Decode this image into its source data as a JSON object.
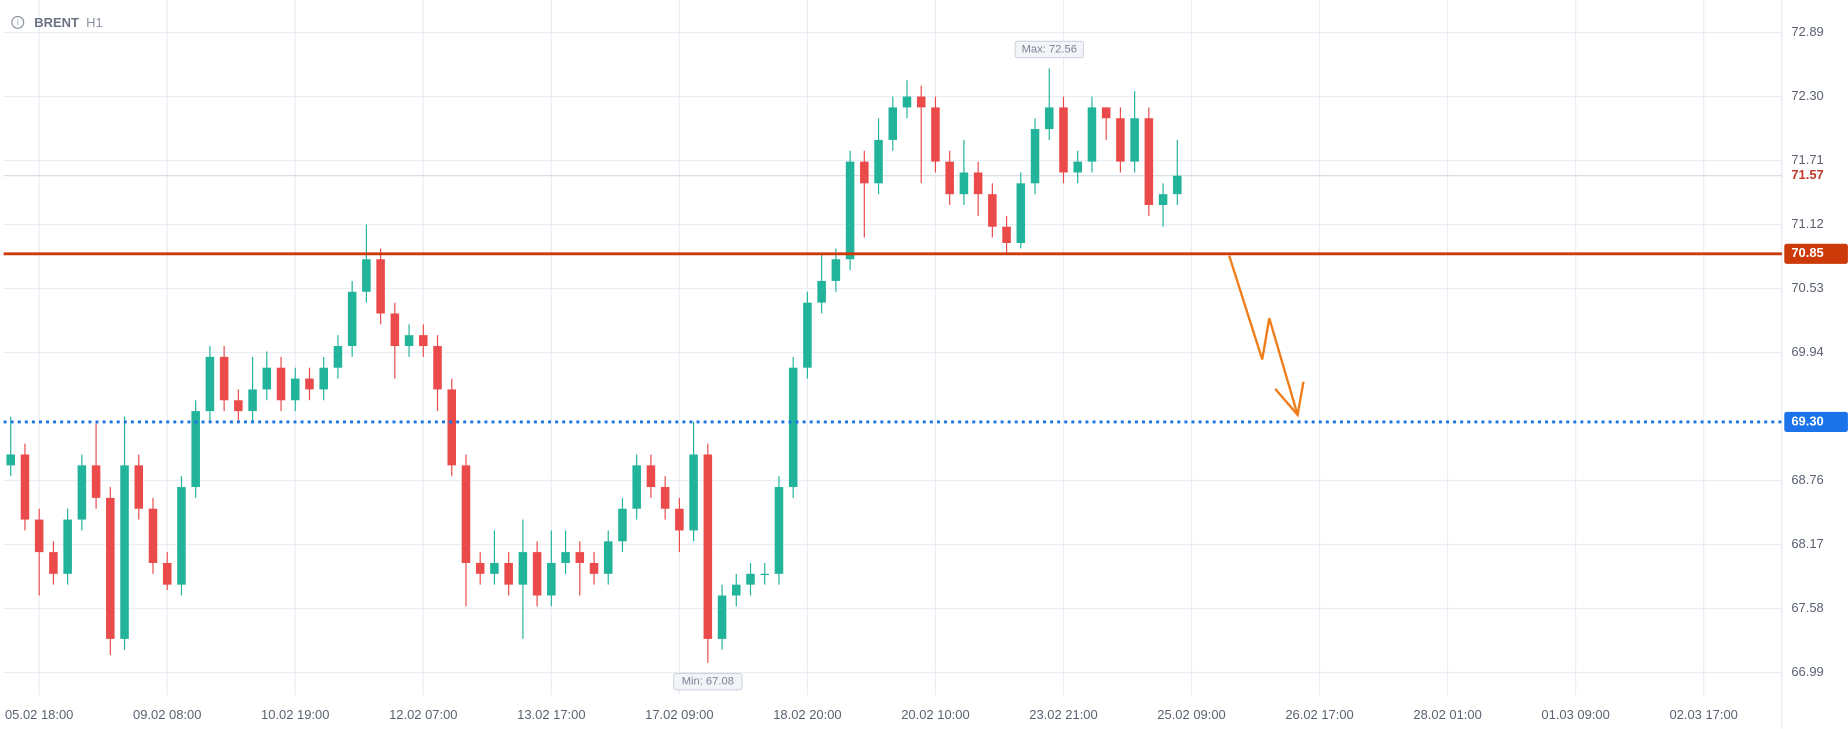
{
  "chart_data": {
    "type": "candlestick",
    "title": "BRENT",
    "timeframe": "H1",
    "x": [
      -8,
      -4,
      0,
      4,
      8,
      12,
      16,
      20,
      24,
      28,
      32,
      36,
      40,
      44,
      48,
      52,
      56,
      60,
      64,
      68,
      72,
      76,
      80,
      84,
      88,
      92,
      96,
      100,
      104,
      108,
      112,
      116,
      120,
      124,
      128,
      132,
      136,
      140,
      144,
      148,
      152,
      156,
      160,
      164,
      168,
      172,
      176,
      180,
      184,
      188,
      192,
      196,
      200,
      204,
      208,
      212,
      216,
      220,
      224,
      228,
      232,
      236,
      240,
      244,
      248,
      252,
      256,
      260,
      264,
      268,
      272,
      276,
      280,
      284,
      288,
      292,
      296,
      300,
      304,
      308,
      312,
      316,
      320
    ],
    "open": [
      68.9,
      69.0,
      68.4,
      68.1,
      67.9,
      68.4,
      68.9,
      68.6,
      67.3,
      68.9,
      68.5,
      68.0,
      67.8,
      68.7,
      69.4,
      69.9,
      69.5,
      69.4,
      69.6,
      69.8,
      69.5,
      69.7,
      69.6,
      69.8,
      70.0,
      70.5,
      70.8,
      70.3,
      70.0,
      70.1,
      70.0,
      69.6,
      68.9,
      68.0,
      67.9,
      68.0,
      67.8,
      68.1,
      67.7,
      68.0,
      68.1,
      68.0,
      67.9,
      68.2,
      68.5,
      68.9,
      68.7,
      68.5,
      68.3,
      69.0,
      67.3,
      67.7,
      67.8,
      67.9,
      67.9,
      68.7,
      69.8,
      70.4,
      70.6,
      70.8,
      71.7,
      71.5,
      71.9,
      72.2,
      72.3,
      72.2,
      71.7,
      71.4,
      71.6,
      71.4,
      71.1,
      70.95,
      71.5,
      72.0,
      72.2,
      71.6,
      71.7,
      72.2,
      72.1,
      71.7,
      72.1,
      71.3,
      71.4
    ],
    "high": [
      69.35,
      69.1,
      68.5,
      68.2,
      68.5,
      69.0,
      69.3,
      68.7,
      69.35,
      69.0,
      68.6,
      68.1,
      68.8,
      69.5,
      70.0,
      70.0,
      69.6,
      69.9,
      69.95,
      69.9,
      69.8,
      69.8,
      69.9,
      70.1,
      70.6,
      71.12,
      70.9,
      70.4,
      70.2,
      70.2,
      70.1,
      69.7,
      69.0,
      68.1,
      68.3,
      68.1,
      68.4,
      68.2,
      68.3,
      68.3,
      68.2,
      68.1,
      68.3,
      68.6,
      69.0,
      69.0,
      68.8,
      68.6,
      69.3,
      69.1,
      67.8,
      67.9,
      68.0,
      68.0,
      68.8,
      69.9,
      70.5,
      70.85,
      70.9,
      71.8,
      71.8,
      72.1,
      72.3,
      72.45,
      72.4,
      72.3,
      71.8,
      71.9,
      71.7,
      71.5,
      71.2,
      71.6,
      72.1,
      72.56,
      72.3,
      71.8,
      72.3,
      72.2,
      72.2,
      72.35,
      72.2,
      71.5,
      71.9
    ],
    "low": [
      68.8,
      68.3,
      67.7,
      67.8,
      67.8,
      68.3,
      68.5,
      67.15,
      67.2,
      68.4,
      67.9,
      67.75,
      67.7,
      68.6,
      69.3,
      69.4,
      69.3,
      69.3,
      69.5,
      69.4,
      69.4,
      69.5,
      69.5,
      69.7,
      69.9,
      70.4,
      70.2,
      69.7,
      69.9,
      69.9,
      69.4,
      68.8,
      67.6,
      67.8,
      67.8,
      67.7,
      67.3,
      67.6,
      67.6,
      67.9,
      67.7,
      67.8,
      67.8,
      68.1,
      68.4,
      68.6,
      68.4,
      68.1,
      68.2,
      67.08,
      67.2,
      67.6,
      67.7,
      67.8,
      67.8,
      68.6,
      69.7,
      70.3,
      70.5,
      70.7,
      71.0,
      71.4,
      71.8,
      72.1,
      71.5,
      71.6,
      71.3,
      71.3,
      71.2,
      71.0,
      70.85,
      70.9,
      71.4,
      71.9,
      71.5,
      71.5,
      71.6,
      71.9,
      71.6,
      71.6,
      71.2,
      71.1,
      71.3
    ],
    "close": [
      69.0,
      68.4,
      68.1,
      67.9,
      68.4,
      68.9,
      68.6,
      67.3,
      68.9,
      68.5,
      68.0,
      67.8,
      68.7,
      69.4,
      69.9,
      69.5,
      69.4,
      69.6,
      69.8,
      69.5,
      69.7,
      69.6,
      69.8,
      70.0,
      70.5,
      70.8,
      70.3,
      70.0,
      70.1,
      70.0,
      69.6,
      68.9,
      68.0,
      67.9,
      68.0,
      67.8,
      68.1,
      67.7,
      68.0,
      68.1,
      68.0,
      67.9,
      68.2,
      68.5,
      68.9,
      68.7,
      68.5,
      68.3,
      69.0,
      67.3,
      67.7,
      67.8,
      67.9,
      67.9,
      68.7,
      69.8,
      70.4,
      70.6,
      70.8,
      71.7,
      71.5,
      71.9,
      72.2,
      72.3,
      72.2,
      71.7,
      71.4,
      71.6,
      71.4,
      71.1,
      70.95,
      71.5,
      72.0,
      72.2,
      71.6,
      71.7,
      72.2,
      72.1,
      71.7,
      72.1,
      71.3,
      71.4,
      71.57
    ],
    "up_color": "#22b39b",
    "down_color": "#ea4a4a",
    "xlim": [
      -10,
      490
    ],
    "xticks": [
      {
        "value": 0,
        "label": "05.02 18:00"
      },
      {
        "value": 36,
        "label": "09.02 08:00"
      },
      {
        "value": 72,
        "label": "10.02 19:00"
      },
      {
        "value": 108,
        "label": "12.02 07:00"
      },
      {
        "value": 144,
        "label": "13.02 17:00"
      },
      {
        "value": 180,
        "label": "17.02 09:00"
      },
      {
        "value": 216,
        "label": "18.02 20:00"
      },
      {
        "value": 252,
        "label": "20.02 10:00"
      },
      {
        "value": 288,
        "label": "23.02 21:00"
      },
      {
        "value": 324,
        "label": "25.02 09:00"
      },
      {
        "value": 360,
        "label": "26.02 17:00"
      },
      {
        "value": 396,
        "label": "28.02 01:00"
      },
      {
        "value": 432,
        "label": "01.03 09:00"
      },
      {
        "value": 468,
        "label": "02.03 17:00"
      }
    ],
    "ylim": [
      66.78,
      73.19
    ],
    "yticks": [
      72.89,
      {
        "value": 72.3,
        "label": "72.30"
      },
      71.71,
      71.12,
      70.53,
      69.94,
      68.76,
      68.17,
      67.58,
      66.99
    ],
    "grid": true,
    "max_label": "Max: 72.56",
    "min_label": "Min: 67.08",
    "current_price": {
      "value": 71.57,
      "label": "71.57"
    },
    "levels": [
      {
        "value": 70.85,
        "label": "70.85",
        "color": "#cc3a0a",
        "style": "solid"
      },
      {
        "value": 69.3,
        "label": "69.30",
        "color": "#1a73e8",
        "style": "dotted"
      }
    ]
  }
}
